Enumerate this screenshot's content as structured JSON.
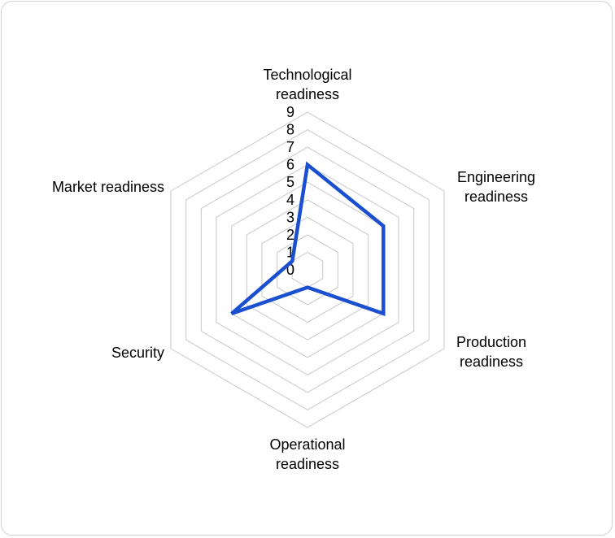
{
  "chart_data": {
    "type": "radar",
    "axes": [
      [
        "Technological",
        "readiness"
      ],
      [
        "Engineering",
        "readiness"
      ],
      [
        "Production",
        "readiness"
      ],
      [
        "Operational",
        "readiness"
      ],
      [
        "Security"
      ],
      [
        "Market readiness"
      ]
    ],
    "values": [
      6,
      5,
      5,
      1,
      5,
      1
    ],
    "rlim": [
      0,
      9
    ],
    "ticks": [
      "0",
      "1",
      "2",
      "3",
      "4",
      "5",
      "6",
      "7",
      "8",
      "9"
    ],
    "grid": true,
    "colors": {
      "series": "#1a4fd0",
      "grid": "#c8c8c8"
    }
  }
}
